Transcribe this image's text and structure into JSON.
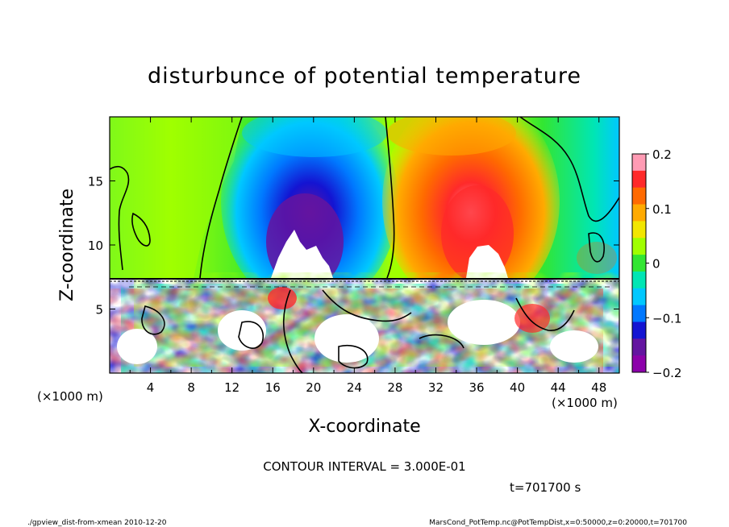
{
  "chart_data": {
    "type": "heatmap",
    "title": "disturbunce of potential temperature",
    "xlabel": "X-coordinate",
    "ylabel": "Z-coordinate",
    "x_unit_left": "(×1000 m)",
    "x_unit_right": "(×1000 m)",
    "xlim": [
      0,
      50
    ],
    "ylim": [
      0,
      20
    ],
    "x_ticks": [
      "4",
      "8",
      "12",
      "16",
      "20",
      "24",
      "28",
      "32",
      "36",
      "40",
      "44",
      "48"
    ],
    "x_tick_values": [
      4,
      8,
      12,
      16,
      20,
      24,
      28,
      32,
      36,
      40,
      44,
      48
    ],
    "y_ticks": [
      "5",
      "10",
      "15"
    ],
    "y_tick_values": [
      5,
      10,
      15
    ],
    "colorbar": {
      "range": [
        -0.2,
        0.2
      ],
      "tick_labels": [
        "0.2",
        "0.1",
        "0",
        "−0.1",
        "−0.2"
      ],
      "tick_values": [
        0.2,
        0.1,
        0,
        -0.1,
        -0.2
      ],
      "colors": [
        "#ff9bb4",
        "#ff2a2a",
        "#ff6a00",
        "#ffaa00",
        "#f2e600",
        "#a0ff00",
        "#32e632",
        "#00e6b4",
        "#00c8ff",
        "#0078ff",
        "#1414d2",
        "#6414a0",
        "#8c00aa"
      ]
    },
    "contour_note": "CONTOUR INTERVAL = 3.000E-01",
    "time_label": "t=701700 s",
    "features": [
      {
        "kind": "negative-anomaly",
        "center": [
          20,
          13
        ],
        "note": "deep blue to purple column"
      },
      {
        "kind": "positive-anomaly",
        "center": [
          36,
          13
        ],
        "note": "red to pink column"
      },
      {
        "kind": "turbulent-layer",
        "z_range": [
          0,
          7.3
        ]
      }
    ]
  },
  "footer": {
    "left": "./gpview_dist-from-xmean  2010-12-20",
    "right": "MarsCond_PotTemp.nc@PotTempDist,x=0:50000,z=0:20000,t=701700"
  },
  "colors": {
    "background": "#ffffff",
    "text": "#000000",
    "field_background": "#32e632"
  }
}
